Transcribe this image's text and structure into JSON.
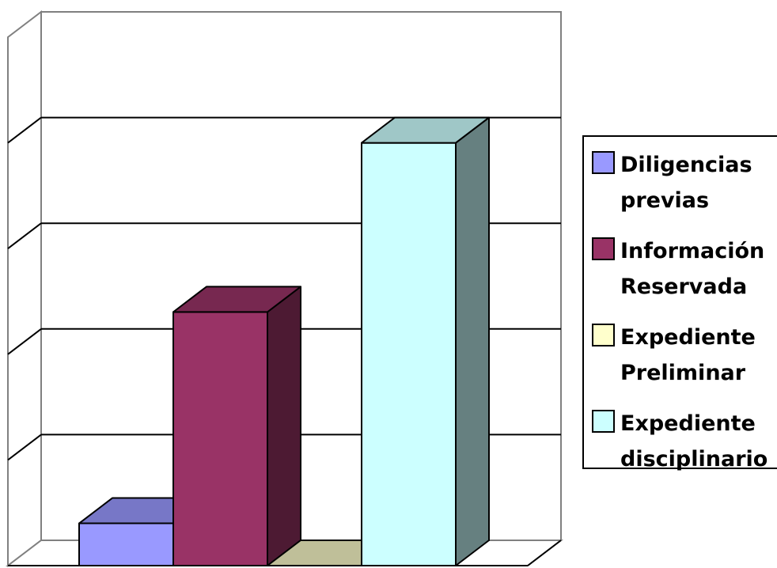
{
  "chart_data": {
    "type": "bar",
    "style": "3d-column",
    "title": "",
    "xlabel": "",
    "ylabel": "",
    "ylim": [
      0,
      5
    ],
    "grid": true,
    "gridlines": [
      0,
      1,
      2,
      3,
      4,
      5
    ],
    "legend_position": "right",
    "categories": [
      "Diligencias previas",
      "Información Reservada",
      "Expediente Preliminar",
      "Expediente disciplinario"
    ],
    "series": [
      {
        "name": "Diligencias previas",
        "legend_lines": [
          "Diligencias",
          "previas"
        ],
        "value": 0.4,
        "color": "#9999FF"
      },
      {
        "name": "Información Reservada",
        "legend_lines": [
          "Información",
          "Reservada"
        ],
        "value": 2.4,
        "color": "#993366"
      },
      {
        "name": "Expediente Preliminar",
        "legend_lines": [
          "Expediente",
          "Preliminar"
        ],
        "value": 0,
        "color": "#FFFFCC"
      },
      {
        "name": "Expediente disciplinario",
        "legend_lines": [
          "Expediente",
          "disciplinario"
        ],
        "value": 4,
        "color": "#CCFFFF"
      }
    ]
  }
}
